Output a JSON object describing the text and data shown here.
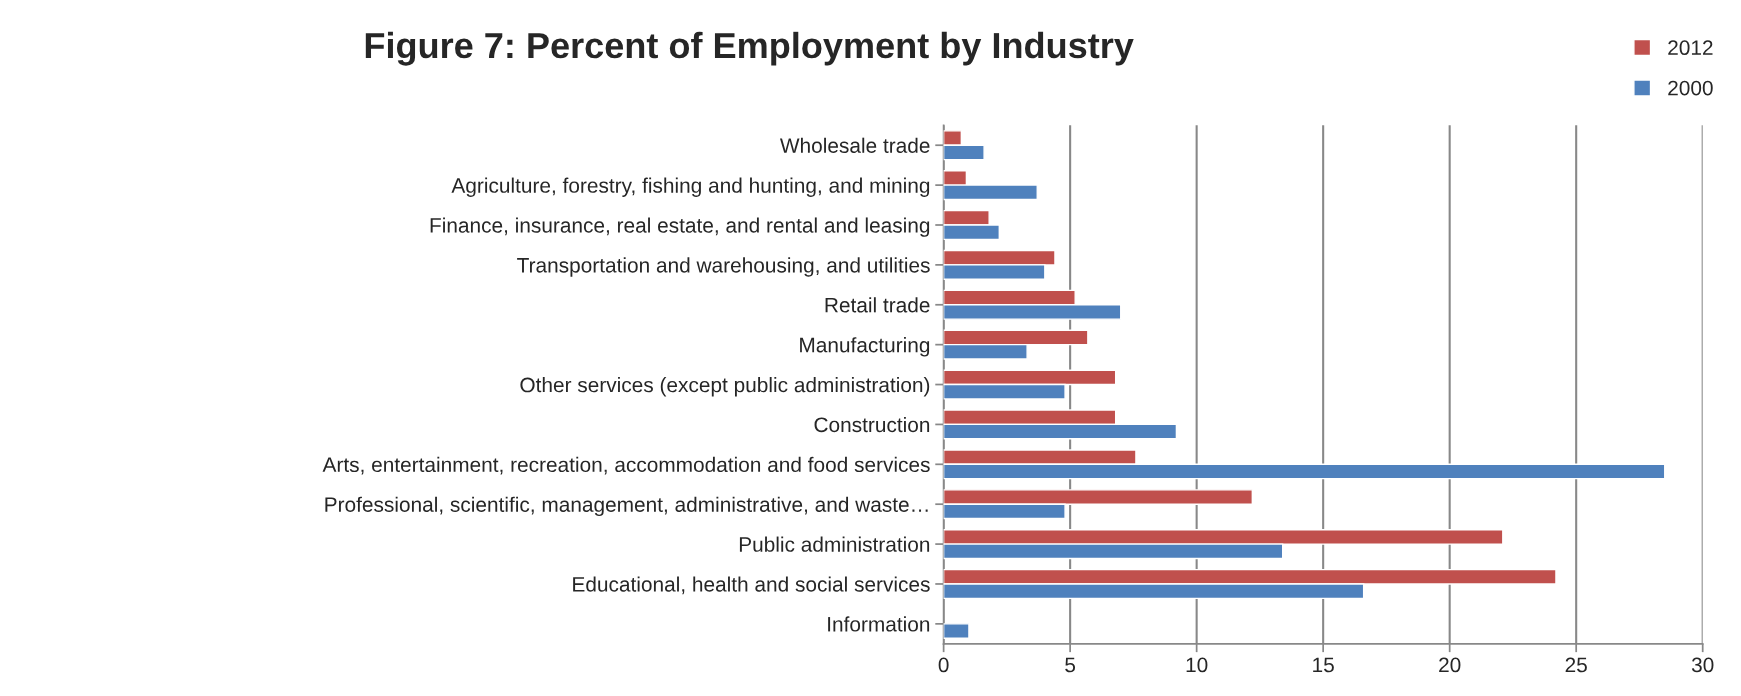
{
  "chart_data": {
    "type": "bar",
    "orientation": "horizontal",
    "title": "Figure 7: Percent of Employment by Industry",
    "categories": [
      "Wholesale trade",
      "Agriculture, forestry, fishing and hunting, and mining",
      "Finance, insurance, real estate, and rental and leasing",
      "Transportation and warehousing, and utilities",
      "Retail trade",
      "Manufacturing",
      "Other services (except public administration)",
      "Construction",
      "Arts, entertainment, recreation, accommodation and food services",
      "Professional, scientific, management, administrative, and waste…",
      "Public administration",
      "Educational, health and social services",
      "Information"
    ],
    "series": [
      {
        "name": "2012",
        "color": "#c0504d",
        "values": [
          0.7,
          0.9,
          1.8,
          4.4,
          5.2,
          5.7,
          6.8,
          6.8,
          7.6,
          12.2,
          22.1,
          24.2,
          null
        ]
      },
      {
        "name": "2000",
        "color": "#4f81bd",
        "values": [
          1.6,
          3.7,
          2.2,
          4.0,
          7.0,
          3.3,
          4.8,
          9.2,
          28.5,
          4.8,
          13.4,
          16.6,
          1.0
        ]
      }
    ],
    "xlim": [
      0,
      30
    ],
    "xticks": [
      0,
      5,
      10,
      15,
      20,
      25,
      30
    ],
    "grid": "x",
    "legend": "top right"
  }
}
